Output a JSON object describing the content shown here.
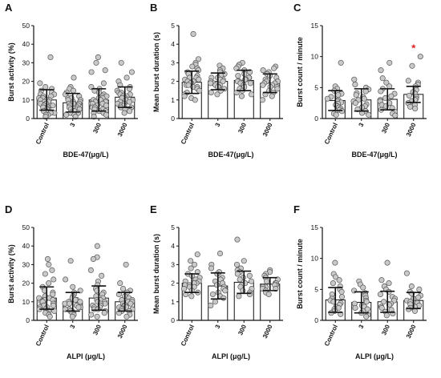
{
  "chart_data": [
    {
      "panel": "A",
      "type": "bar",
      "ylabel": "Burst activity (%)",
      "xlabel": "BDE-47(μg/L)",
      "categories": [
        "Control",
        "3",
        "300",
        "3000"
      ],
      "ylim": [
        0,
        50
      ],
      "yticks": [
        0,
        10,
        20,
        30,
        40,
        50
      ],
      "values": [
        10,
        8.5,
        10,
        11.5
      ],
      "sd": [
        5.5,
        5,
        6,
        5.5
      ],
      "points": [
        [
          33,
          19,
          17,
          16,
          15,
          14,
          13,
          13,
          12,
          12,
          11,
          11,
          10,
          10,
          10,
          9,
          9,
          8,
          8,
          8,
          7,
          7,
          7,
          6,
          6,
          6,
          5,
          5,
          4,
          4,
          3,
          3,
          2,
          2,
          1
        ],
        [
          22,
          17,
          16,
          15,
          14,
          13,
          12,
          11,
          11,
          10,
          10,
          9,
          9,
          8,
          8,
          8,
          7,
          7,
          7,
          6,
          6,
          5,
          5,
          5,
          4,
          4,
          3,
          3,
          2,
          2,
          1
        ],
        [
          33,
          30,
          26,
          25,
          19,
          17,
          16,
          15,
          14,
          13,
          12,
          12,
          11,
          11,
          10,
          10,
          9,
          9,
          8,
          8,
          8,
          7,
          7,
          6,
          6,
          5,
          5,
          4,
          4,
          3,
          3,
          2,
          1
        ],
        [
          30,
          25,
          22,
          20,
          18,
          17,
          16,
          15,
          14,
          14,
          13,
          13,
          12,
          12,
          11,
          11,
          10,
          10,
          9,
          9,
          8,
          8,
          7,
          7,
          6,
          6,
          5,
          5,
          4,
          3
        ]
      ]
    },
    {
      "panel": "B",
      "type": "bar",
      "ylabel": "Mean burst duration (s)",
      "xlabel": "BDE-47(μg/L)",
      "categories": [
        "Control",
        "3",
        "300",
        "3000"
      ],
      "ylim": [
        0,
        5
      ],
      "yticks": [
        0,
        1,
        2,
        3,
        4,
        5
      ],
      "values": [
        1.95,
        2.0,
        2.05,
        1.9
      ],
      "sd": [
        0.6,
        0.45,
        0.55,
        0.5
      ],
      "points": [
        [
          4.55,
          3.2,
          3.0,
          2.9,
          2.8,
          2.7,
          2.6,
          2.5,
          2.4,
          2.3,
          2.2,
          2.2,
          2.1,
          2.1,
          2.0,
          2.0,
          1.9,
          1.9,
          1.8,
          1.8,
          1.7,
          1.7,
          1.6,
          1.5,
          1.4,
          1.3,
          1.2,
          1.1,
          1.0
        ],
        [
          2.85,
          2.7,
          2.6,
          2.5,
          2.4,
          2.3,
          2.2,
          2.2,
          2.1,
          2.1,
          2.0,
          2.0,
          1.9,
          1.9,
          1.8,
          1.8,
          1.7,
          1.7,
          1.6,
          1.5,
          1.4,
          1.3
        ],
        [
          3.0,
          2.9,
          2.8,
          2.7,
          2.6,
          2.5,
          2.4,
          2.3,
          2.2,
          2.2,
          2.1,
          2.1,
          2.0,
          2.0,
          1.9,
          1.9,
          1.8,
          1.8,
          1.7,
          1.6,
          1.5,
          1.4,
          1.3,
          1.2
        ],
        [
          2.8,
          2.7,
          2.6,
          2.5,
          2.4,
          2.3,
          2.2,
          2.1,
          2.0,
          2.0,
          1.9,
          1.9,
          1.8,
          1.8,
          1.7,
          1.7,
          1.6,
          1.5,
          1.4,
          1.3,
          1.2,
          1.0
        ]
      ]
    },
    {
      "panel": "C",
      "type": "bar",
      "ylabel": "Burst count / minute",
      "xlabel": "BDE-47(μg/L)",
      "categories": [
        "Control",
        "3",
        "300",
        "3000"
      ],
      "ylim": [
        0,
        15
      ],
      "yticks": [
        0,
        5,
        10,
        15
      ],
      "values": [
        2.9,
        3.0,
        3.1,
        3.9
      ],
      "sd": [
        1.6,
        1.8,
        1.7,
        1.3
      ],
      "significance": [
        "",
        "",
        "",
        "*"
      ],
      "points": [
        [
          9.0,
          5.2,
          4.8,
          4.5,
          4.2,
          4.0,
          3.8,
          3.5,
          3.2,
          3.0,
          2.8,
          2.6,
          2.4,
          2.2,
          2.0,
          1.8,
          1.6,
          1.4,
          1.2,
          1.0,
          0.8,
          0.6
        ],
        [
          6.3,
          5.5,
          5.0,
          4.7,
          4.4,
          4.1,
          3.8,
          3.5,
          3.2,
          3.0,
          2.8,
          2.5,
          2.3,
          2.0,
          1.8,
          1.5,
          1.2,
          0.9,
          0.6
        ],
        [
          9.0,
          7.8,
          6.5,
          5.8,
          5.2,
          4.8,
          4.4,
          4.0,
          3.6,
          3.3,
          3.0,
          2.8,
          2.5,
          2.2,
          2.0,
          1.7,
          1.4,
          1.1,
          0.8,
          0.5
        ],
        [
          10.0,
          8.5,
          6.1,
          5.8,
          5.5,
          5.2,
          4.9,
          4.6,
          4.3,
          4.0,
          3.7,
          3.5,
          3.2,
          3.0,
          2.8,
          2.5,
          2.2,
          1.9,
          1.6
        ]
      ]
    },
    {
      "panel": "D",
      "type": "bar",
      "ylabel": "Burst activity (%)",
      "xlabel": "ALPI (μg/L)",
      "categories": [
        "Control",
        "3",
        "300",
        "3000"
      ],
      "ylim": [
        0,
        50
      ],
      "yticks": [
        0,
        10,
        20,
        30,
        40,
        50
      ],
      "values": [
        12,
        10,
        12,
        10
      ],
      "sd": [
        6,
        5,
        6.5,
        5
      ],
      "points": [
        [
          33,
          30,
          27,
          25,
          22,
          20,
          18,
          17,
          16,
          15,
          14,
          13,
          12,
          12,
          11,
          11,
          10,
          10,
          9,
          9,
          8,
          8,
          7,
          7,
          6,
          6,
          5,
          5,
          4,
          4,
          3,
          2
        ],
        [
          32,
          22,
          18,
          16,
          15,
          14,
          13,
          12,
          11,
          11,
          10,
          10,
          9,
          9,
          8,
          8,
          7,
          7,
          6,
          6,
          5,
          5,
          4,
          4,
          3,
          2
        ],
        [
          40,
          34,
          33,
          27,
          24,
          21,
          19,
          17,
          16,
          15,
          14,
          13,
          12,
          11,
          11,
          10,
          10,
          9,
          9,
          8,
          8,
          7,
          7,
          6,
          6,
          5,
          4,
          3,
          2
        ],
        [
          30,
          20,
          17,
          16,
          15,
          14,
          13,
          12,
          11,
          11,
          10,
          10,
          9,
          9,
          8,
          8,
          7,
          7,
          6,
          6,
          5,
          5,
          4,
          3,
          2
        ]
      ]
    },
    {
      "panel": "E",
      "type": "bar",
      "ylabel": "Mean burst duration (s)",
      "xlabel": "ALPI (μg/L)",
      "categories": [
        "Control",
        "3",
        "300",
        "3000"
      ],
      "ylim": [
        0,
        5
      ],
      "yticks": [
        0,
        1,
        2,
        3,
        4,
        5
      ],
      "values": [
        2.0,
        1.85,
        2.05,
        1.95
      ],
      "sd": [
        0.5,
        0.7,
        0.6,
        0.35
      ],
      "points": [
        [
          3.55,
          3.2,
          3.0,
          2.8,
          2.6,
          2.5,
          2.4,
          2.3,
          2.2,
          2.1,
          2.1,
          2.0,
          2.0,
          1.9,
          1.9,
          1.8,
          1.8,
          1.7,
          1.6,
          1.5,
          1.4,
          1.3
        ],
        [
          3.6,
          3.0,
          2.8,
          2.6,
          2.5,
          2.3,
          2.2,
          2.1,
          2.0,
          1.9,
          1.8,
          1.7,
          1.6,
          1.5,
          1.4,
          1.3,
          1.2,
          1.0,
          0.8
        ],
        [
          4.35,
          3.2,
          3.0,
          2.8,
          2.7,
          2.6,
          2.5,
          2.4,
          2.3,
          2.2,
          2.1,
          2.0,
          1.9,
          1.8,
          1.7,
          1.6,
          1.5,
          1.4,
          1.3
        ],
        [
          2.7,
          2.6,
          2.5,
          2.4,
          2.3,
          2.2,
          2.1,
          2.0,
          2.0,
          1.9,
          1.9,
          1.8,
          1.8,
          1.7,
          1.7,
          1.6,
          1.5,
          1.4
        ]
      ]
    },
    {
      "panel": "F",
      "type": "bar",
      "ylabel": "Burst count / minute",
      "xlabel": "ALPI (μg/L)",
      "categories": [
        "Control",
        "3",
        "300",
        "3000"
      ],
      "ylim": [
        0,
        15
      ],
      "yticks": [
        0,
        5,
        10,
        15
      ],
      "values": [
        3.3,
        2.9,
        3.0,
        3.2
      ],
      "sd": [
        2.0,
        1.7,
        1.7,
        1.3
      ],
      "points": [
        [
          9.3,
          7.5,
          7.0,
          6.5,
          6.0,
          5.5,
          5.0,
          4.6,
          4.2,
          3.8,
          3.5,
          3.2,
          3.0,
          2.8,
          2.5,
          2.2,
          2.0,
          1.8,
          1.5,
          1.2,
          1.0
        ],
        [
          6.3,
          5.8,
          5.3,
          4.8,
          4.4,
          4.0,
          3.6,
          3.2,
          3.0,
          2.7,
          2.4,
          2.2,
          2.0,
          1.8,
          1.5,
          1.2,
          0.9,
          0.6
        ],
        [
          9.3,
          6.5,
          6.0,
          5.5,
          5.0,
          4.6,
          4.2,
          3.8,
          3.5,
          3.2,
          3.0,
          2.7,
          2.5,
          2.2,
          2.0,
          1.7,
          1.4,
          1.1,
          0.8
        ],
        [
          7.6,
          5.5,
          5.0,
          4.6,
          4.3,
          4.0,
          3.7,
          3.5,
          3.2,
          3.0,
          2.8,
          2.6,
          2.4,
          2.2,
          2.0,
          1.8,
          1.5
        ]
      ]
    }
  ],
  "colors": {
    "bar_fill": "#ffffff",
    "bar_stroke": "#111111",
    "point_fill": "#c9c9c9",
    "point_stroke": "#555555",
    "error_bar": "#111111",
    "significance": "#e02020"
  }
}
